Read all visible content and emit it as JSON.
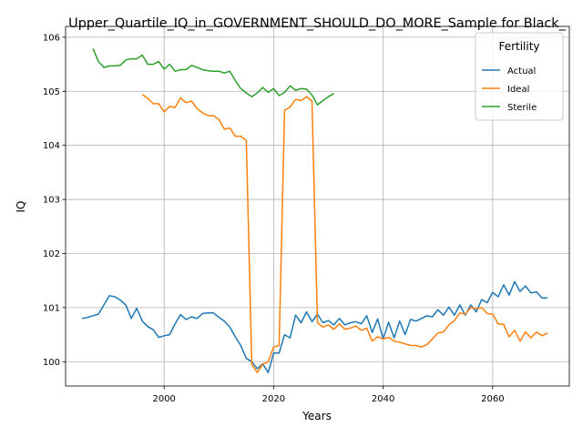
{
  "chart_data": {
    "type": "line",
    "title": "Upper_Quartile_IQ_in_GOVERNMENT_SHOULD_DO_MORE_Sample for Black_",
    "xlabel": "Years",
    "ylabel": "IQ",
    "xlim": [
      1982,
      2074
    ],
    "ylim": [
      99.55,
      106.2
    ],
    "xticks": [
      2000,
      2020,
      2040,
      2060
    ],
    "yticks": [
      100,
      101,
      102,
      103,
      104,
      105,
      106
    ],
    "grid": true,
    "legend": {
      "title": "Fertility",
      "placement": "top-right"
    },
    "series": [
      {
        "name": "Actual",
        "color": "#1f77b4",
        "x": [
          1985,
          1986,
          1987,
          1988,
          1989,
          1990,
          1991,
          1992,
          1993,
          1994,
          1995,
          1996,
          1997,
          1998,
          1999,
          2000,
          2001,
          2002,
          2003,
          2004,
          2005,
          2006,
          2007,
          2008,
          2009,
          2010,
          2011,
          2012,
          2013,
          2014,
          2015,
          2016,
          2017,
          2018,
          2019,
          2020,
          2021,
          2022,
          2023,
          2024,
          2025,
          2026,
          2027,
          2028,
          2029,
          2030,
          2031,
          2032,
          2033,
          2034,
          2035,
          2036,
          2037,
          2038,
          2039,
          2040,
          2041,
          2042,
          2043,
          2044,
          2045,
          2046,
          2047,
          2048,
          2049,
          2050,
          2051,
          2052,
          2053,
          2054,
          2055,
          2056,
          2057,
          2058,
          2059,
          2060,
          2061,
          2062,
          2063,
          2064,
          2065,
          2066,
          2067,
          2068,
          2069,
          2070
        ],
        "y": [
          100.8,
          100.82,
          100.85,
          100.88,
          101.05,
          101.22,
          101.2,
          101.14,
          101.05,
          100.8,
          100.99,
          100.75,
          100.65,
          100.59,
          100.45,
          100.48,
          100.5,
          100.7,
          100.87,
          100.78,
          100.83,
          100.8,
          100.89,
          100.9,
          100.9,
          100.82,
          100.75,
          100.64,
          100.46,
          100.3,
          100.06,
          100.0,
          99.87,
          99.96,
          99.8,
          100.16,
          100.16,
          100.5,
          100.44,
          100.86,
          100.72,
          100.92,
          100.74,
          100.88,
          100.72,
          100.76,
          100.68,
          100.8,
          100.68,
          100.72,
          100.74,
          100.7,
          100.85,
          100.54,
          100.79,
          100.42,
          100.73,
          100.44,
          100.75,
          100.5,
          100.78,
          100.75,
          100.8,
          100.85,
          100.83,
          100.96,
          100.86,
          101.01,
          100.86,
          101.05,
          100.86,
          101.05,
          100.92,
          101.15,
          101.09,
          101.28,
          101.2,
          101.42,
          101.23,
          101.48,
          101.3,
          101.4,
          101.27,
          101.29,
          101.18,
          101.18
        ]
      },
      {
        "name": "Ideal",
        "color": "#ff7f0e",
        "x": [
          1996,
          1997,
          1998,
          1999,
          2000,
          2001,
          2002,
          2003,
          2004,
          2005,
          2006,
          2007,
          2008,
          2009,
          2010,
          2011,
          2012,
          2013,
          2014,
          2015,
          2016,
          2017,
          2018,
          2019,
          2020,
          2021,
          2022,
          2023,
          2024,
          2025,
          2026,
          2027,
          2028,
          2029,
          2030,
          2031,
          2032,
          2033,
          2034,
          2035,
          2036,
          2037,
          2038,
          2039,
          2040,
          2041,
          2042,
          2043,
          2044,
          2045,
          2046,
          2047,
          2048,
          2049,
          2050,
          2051,
          2052,
          2053,
          2054,
          2055,
          2056,
          2057,
          2058,
          2059,
          2060,
          2061,
          2062,
          2063,
          2064,
          2065,
          2066,
          2067,
          2068,
          2069,
          2070
        ],
        "y": [
          104.94,
          104.87,
          104.77,
          104.77,
          104.62,
          104.72,
          104.7,
          104.88,
          104.79,
          104.82,
          104.68,
          104.6,
          104.55,
          104.55,
          104.48,
          104.3,
          104.32,
          104.17,
          104.17,
          104.09,
          99.95,
          99.8,
          99.95,
          100.0,
          100.27,
          100.3,
          104.65,
          104.71,
          104.85,
          104.83,
          104.9,
          104.82,
          100.72,
          100.64,
          100.68,
          100.6,
          100.7,
          100.6,
          100.62,
          100.66,
          100.58,
          100.62,
          100.38,
          100.46,
          100.42,
          100.45,
          100.38,
          100.36,
          100.33,
          100.3,
          100.3,
          100.27,
          100.32,
          100.42,
          100.53,
          100.55,
          100.68,
          100.76,
          100.9,
          100.88,
          101.0,
          100.98,
          101.0,
          100.89,
          100.88,
          100.7,
          100.69,
          100.46,
          100.58,
          100.38,
          100.55,
          100.44,
          100.55,
          100.48,
          100.53
        ]
      },
      {
        "name": "Sterile",
        "color": "#2ca02c",
        "x": [
          1987,
          1988,
          1989,
          1990,
          1991,
          1992,
          1993,
          1994,
          1995,
          1996,
          1997,
          1998,
          1999,
          2000,
          2001,
          2002,
          2003,
          2004,
          2005,
          2006,
          2007,
          2008,
          2009,
          2010,
          2011,
          2012,
          2013,
          2014,
          2015,
          2016,
          2017,
          2018,
          2019,
          2020,
          2021,
          2022,
          2023,
          2024,
          2025,
          2026,
          2027,
          2028,
          2029,
          2030,
          2031
        ],
        "y": [
          105.79,
          105.55,
          105.44,
          105.47,
          105.47,
          105.48,
          105.58,
          105.6,
          105.6,
          105.67,
          105.5,
          105.5,
          105.55,
          105.41,
          105.5,
          105.37,
          105.4,
          105.4,
          105.48,
          105.44,
          105.4,
          105.38,
          105.37,
          105.37,
          105.34,
          105.37,
          105.2,
          105.05,
          104.97,
          104.9,
          104.97,
          105.07,
          104.98,
          105.05,
          104.92,
          104.98,
          105.1,
          105.02,
          105.05,
          105.04,
          104.93,
          104.75,
          104.83,
          104.9,
          104.96
        ]
      }
    ]
  }
}
